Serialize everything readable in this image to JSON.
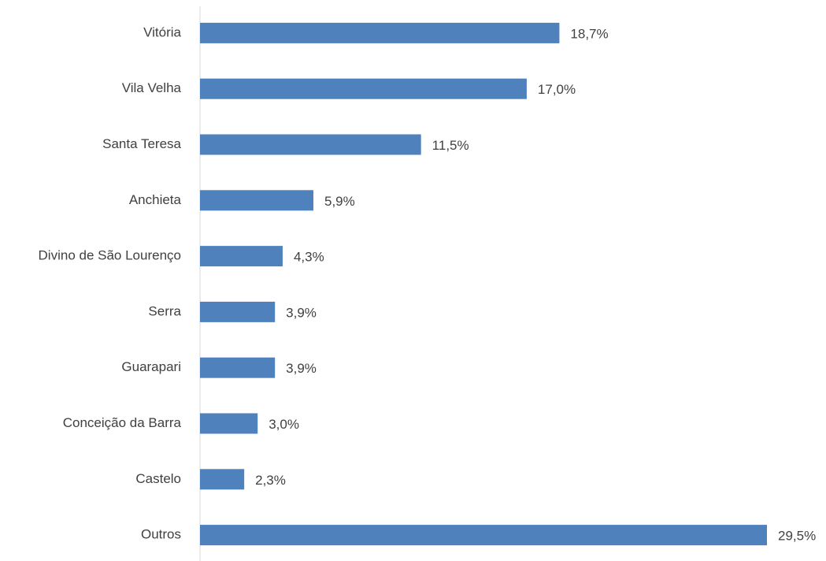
{
  "chart_data": {
    "type": "hbar",
    "categories": [
      "Vitória",
      "Vila Velha",
      "Santa Teresa",
      "Anchieta",
      "Divino de São Lourenço",
      "Serra",
      "Guarapari",
      "Conceição da Barra",
      "Castelo",
      "Outros"
    ],
    "values": [
      18.7,
      17.0,
      11.5,
      5.9,
      4.3,
      3.9,
      3.9,
      3.0,
      2.3,
      29.5
    ],
    "value_labels": [
      "18,7%",
      "17,0%",
      "11,5%",
      "5,9%",
      "4,3%",
      "3,9%",
      "3,9%",
      "3,0%",
      "2,3%",
      "29,5%"
    ],
    "color": "#4f81bd"
  }
}
